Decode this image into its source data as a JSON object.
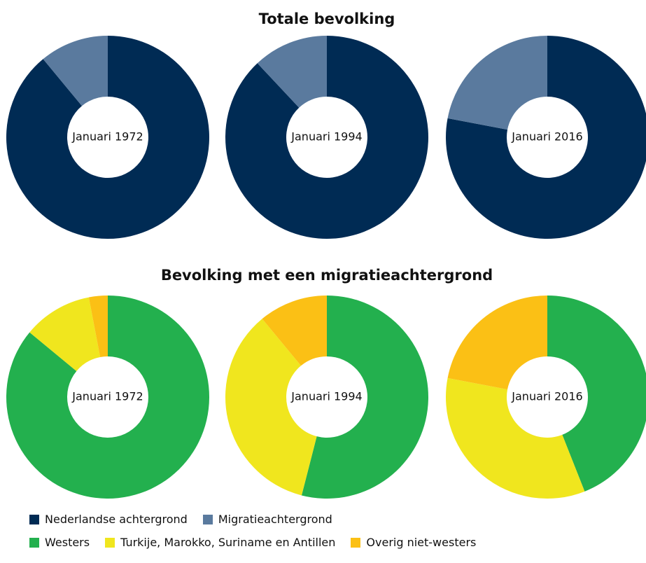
{
  "chart_data": [
    {
      "type": "donut",
      "title": "Totale bevolking",
      "categories": [
        "Januari 1972",
        "Januari 1994",
        "Januari 2016"
      ],
      "series": [
        {
          "name": "Nederlandse achtergrond",
          "color": "#002b54",
          "values": [
            89,
            88,
            78
          ]
        },
        {
          "name": "Migratieachtergrond",
          "color": "#5a7a9e",
          "values": [
            11,
            12,
            22
          ]
        }
      ]
    },
    {
      "type": "donut",
      "title": "Bevolking met een migratieachtergrond",
      "categories": [
        "Januari 1972",
        "Januari 1994",
        "Januari 2016"
      ],
      "series": [
        {
          "name": "Westers",
          "color": "#23b04e",
          "values": [
            86,
            54,
            44
          ]
        },
        {
          "name": "Turkije, Marokko, Suriname en Antillen",
          "color": "#f0e61e",
          "values": [
            11,
            35,
            34
          ]
        },
        {
          "name": "Overig niet-westers",
          "color": "#fbc015",
          "values": [
            3,
            11,
            22
          ]
        }
      ]
    }
  ]
}
